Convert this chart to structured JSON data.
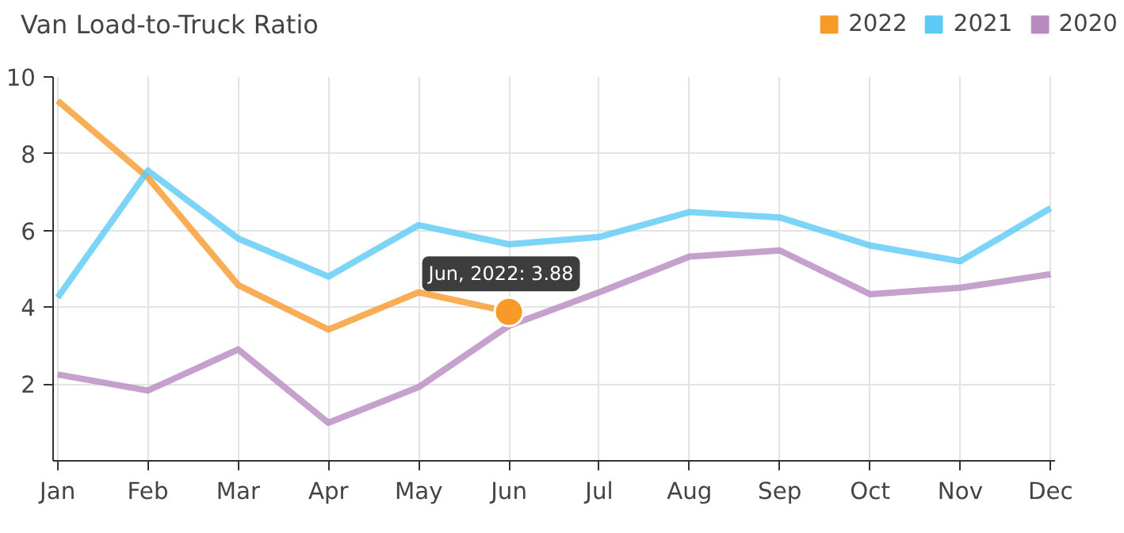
{
  "chart_data": {
    "type": "line",
    "title": "Van Load-to-Truck Ratio",
    "categories": [
      "Jan",
      "Feb",
      "Mar",
      "Apr",
      "May",
      "Jun",
      "Jul",
      "Aug",
      "Sep",
      "Oct",
      "Nov",
      "Dec"
    ],
    "series": [
      {
        "name": "2022",
        "color": "#f89a2a",
        "values": [
          9.38,
          7.38,
          4.58,
          3.42,
          4.39,
          3.88,
          null,
          null,
          null,
          null,
          null,
          null
        ]
      },
      {
        "name": "2021",
        "color": "#5bcbf5",
        "values": [
          4.25,
          7.56,
          5.79,
          4.8,
          6.14,
          5.64,
          5.83,
          6.48,
          6.34,
          5.61,
          5.2,
          6.58
        ]
      },
      {
        "name": "2020",
        "color": "#b88ac0",
        "values": [
          2.25,
          1.83,
          2.9,
          0.99,
          1.92,
          3.52,
          4.39,
          5.32,
          5.48,
          4.34,
          4.51,
          4.86
        ]
      }
    ],
    "ylim": [
      0,
      10
    ],
    "yticks": [
      2,
      4,
      6,
      8,
      10
    ],
    "annotations": [
      {
        "text": "Jun, 2022: 3.88",
        "x": "Jun",
        "y": 3.88
      }
    ],
    "grid": true,
    "legend": "top right",
    "marker": "none",
    "line_style": "solid"
  }
}
